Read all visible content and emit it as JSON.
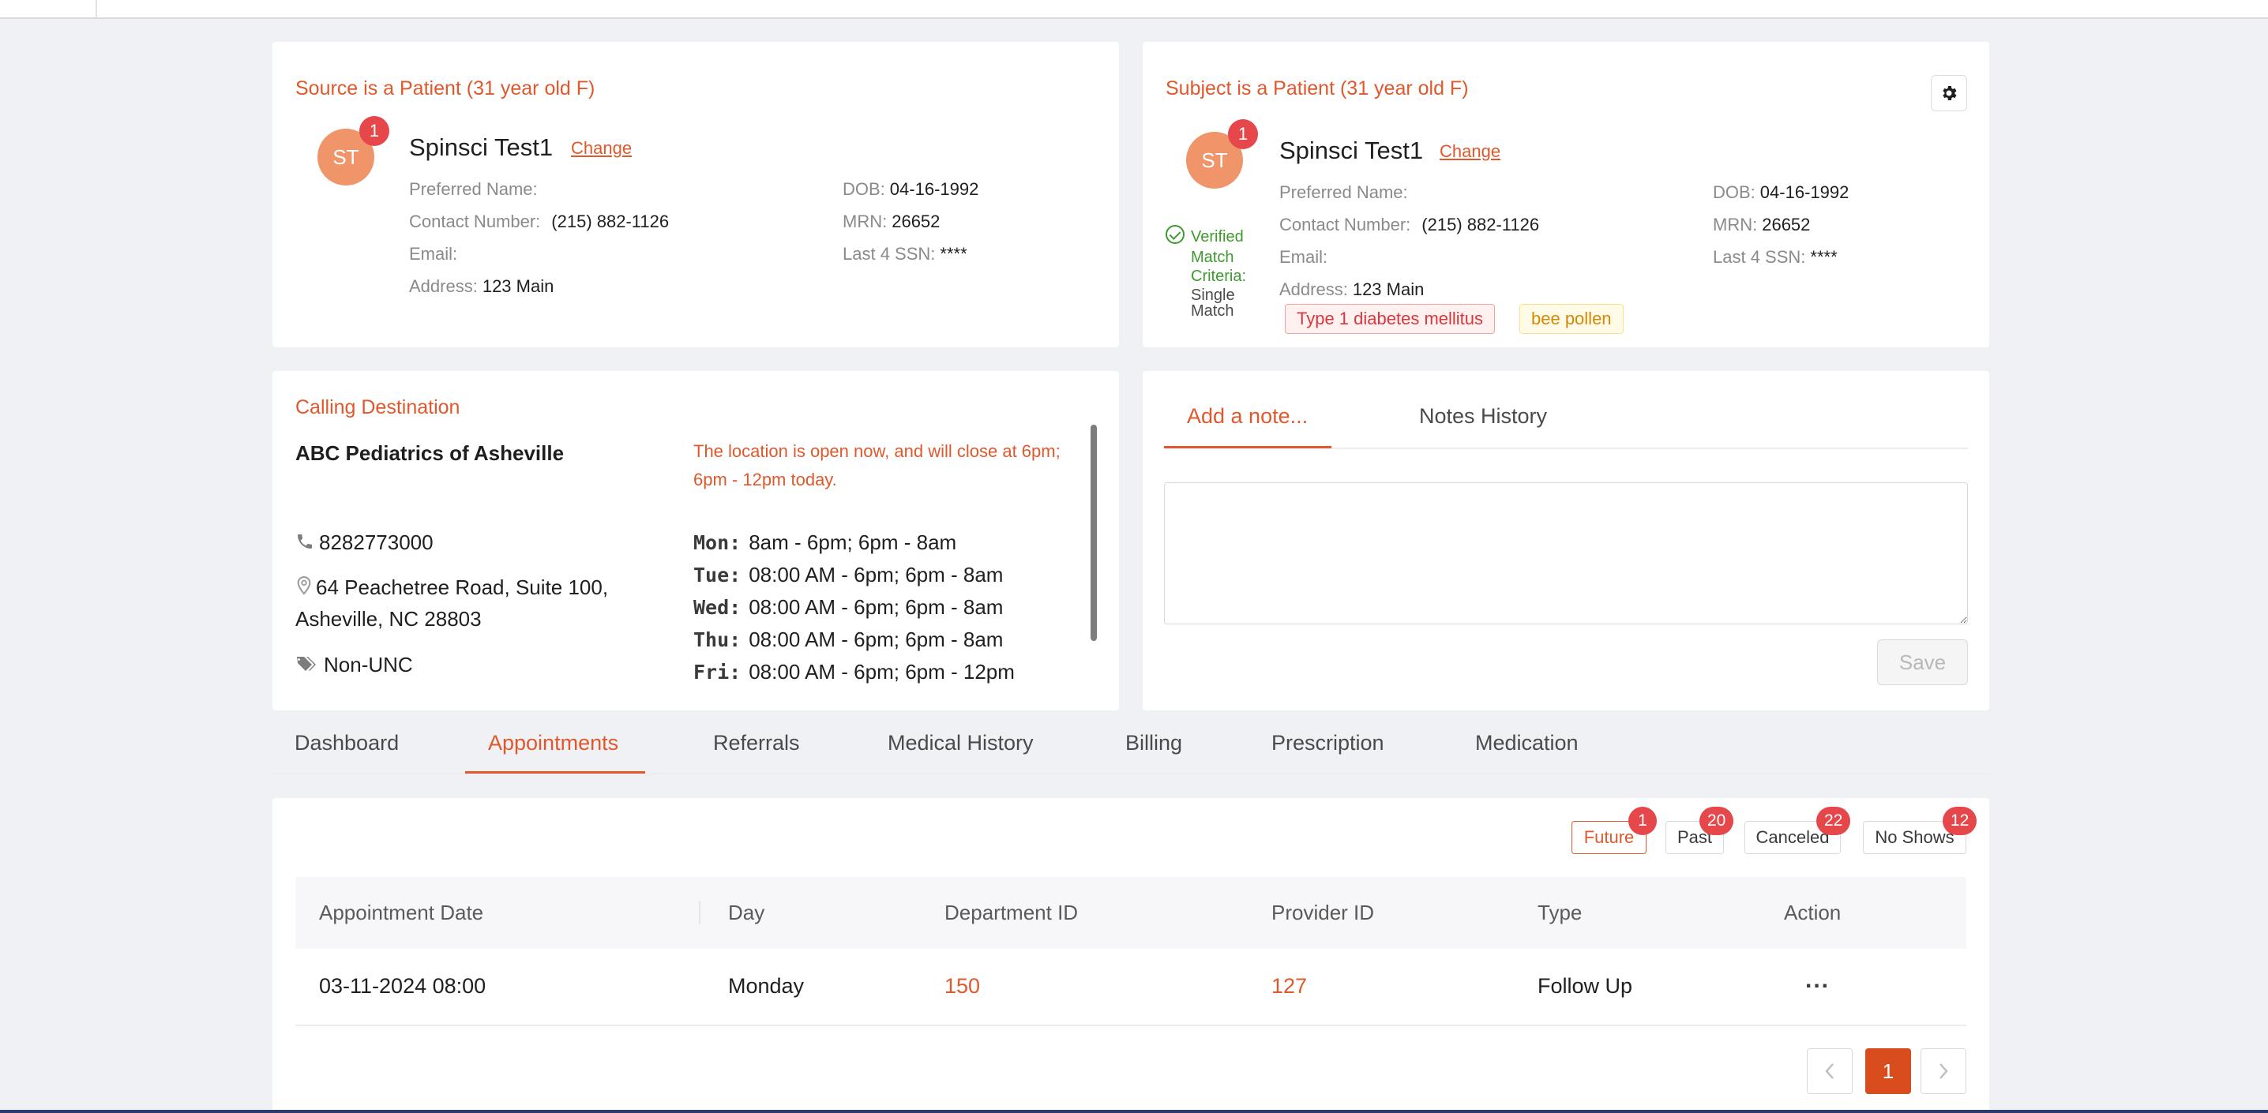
{
  "colors": {
    "accent": "#e0582b",
    "badge": "#e5474b",
    "avatar": "#f0946a",
    "verified": "#3f9a2e",
    "background": "#f0f1f5"
  },
  "source_card": {
    "title": "Source is a Patient (31 year old F)",
    "avatar_initials": "ST",
    "badge_count": "1",
    "name": "Spinsci Test1",
    "change_label": "Change",
    "preferred_name_label": "Preferred Name:",
    "preferred_name": "",
    "contact_label": "Contact Number:",
    "contact": "(215) 882-1126",
    "email_label": "Email:",
    "email": "",
    "address_label": "Address:",
    "address": "123 Main",
    "dob_label": "DOB:",
    "dob": "04-16-1992",
    "mrn_label": "MRN:",
    "mrn": "26652",
    "ssn_label": "Last 4 SSN:",
    "ssn": "****"
  },
  "subject_card": {
    "title": "Subject is a Patient (31 year old F)",
    "avatar_initials": "ST",
    "badge_count": "1",
    "name": "Spinsci Test1",
    "change_label": "Change",
    "verified_label": "Verified",
    "match_criteria_label_1": "Match",
    "match_criteria_label_2": "Criteria:",
    "match_value_1": "Single",
    "match_value_2": "Match",
    "preferred_name_label": "Preferred Name:",
    "preferred_name": "",
    "contact_label": "Contact Number:",
    "contact": "(215) 882-1126",
    "email_label": "Email:",
    "email": "",
    "address_label": "Address:",
    "address": "123 Main",
    "dob_label": "DOB:",
    "dob": "04-16-1992",
    "mrn_label": "MRN:",
    "mrn": "26652",
    "ssn_label": "Last 4 SSN:",
    "ssn": "****",
    "tags": [
      "Type 1 diabetes mellitus",
      "bee pollen"
    ],
    "settings_icon": "gear-icon"
  },
  "destination": {
    "title": "Calling Destination",
    "name": "ABC Pediatrics of Asheville",
    "open_message": "The location is open now, and will close at 6pm; 6pm - 12pm today.",
    "phone": "8282773000",
    "address_line1": "64 Peachetree Road, Suite 100,",
    "address_line2": "Asheville, NC 28803",
    "tag": "Non-UNC",
    "hours": [
      {
        "day": "Mon:",
        "time": "8am - 6pm; 6pm - 8am"
      },
      {
        "day": "Tue:",
        "time": "08:00 AM - 6pm; 6pm - 8am"
      },
      {
        "day": "Wed:",
        "time": "08:00 AM - 6pm; 6pm - 8am"
      },
      {
        "day": "Thu:",
        "time": "08:00 AM - 6pm; 6pm - 8am"
      },
      {
        "day": "Fri:",
        "time": "08:00 AM - 6pm; 6pm - 12pm"
      }
    ]
  },
  "notes": {
    "tabs": [
      "Add a note...",
      "Notes History"
    ],
    "note_value": "",
    "save_label": "Save"
  },
  "main_tabs": [
    "Dashboard",
    "Appointments",
    "Referrals",
    "Medical History",
    "Billing",
    "Prescription",
    "Medication"
  ],
  "filters": [
    {
      "label": "Future",
      "count": "1"
    },
    {
      "label": "Past",
      "count": "20"
    },
    {
      "label": "Canceled",
      "count": "22"
    },
    {
      "label": "No Shows",
      "count": "12"
    }
  ],
  "table": {
    "columns": [
      "Appointment Date",
      "Day",
      "Department ID",
      "Provider ID",
      "Type",
      "Action"
    ],
    "rows": [
      {
        "date": "03-11-2024 08:00",
        "day": "Monday",
        "department": "150",
        "provider": "127",
        "type": "Follow Up",
        "action": "..."
      }
    ]
  },
  "pagination": {
    "prev": "<",
    "current": "1",
    "next": ">"
  }
}
